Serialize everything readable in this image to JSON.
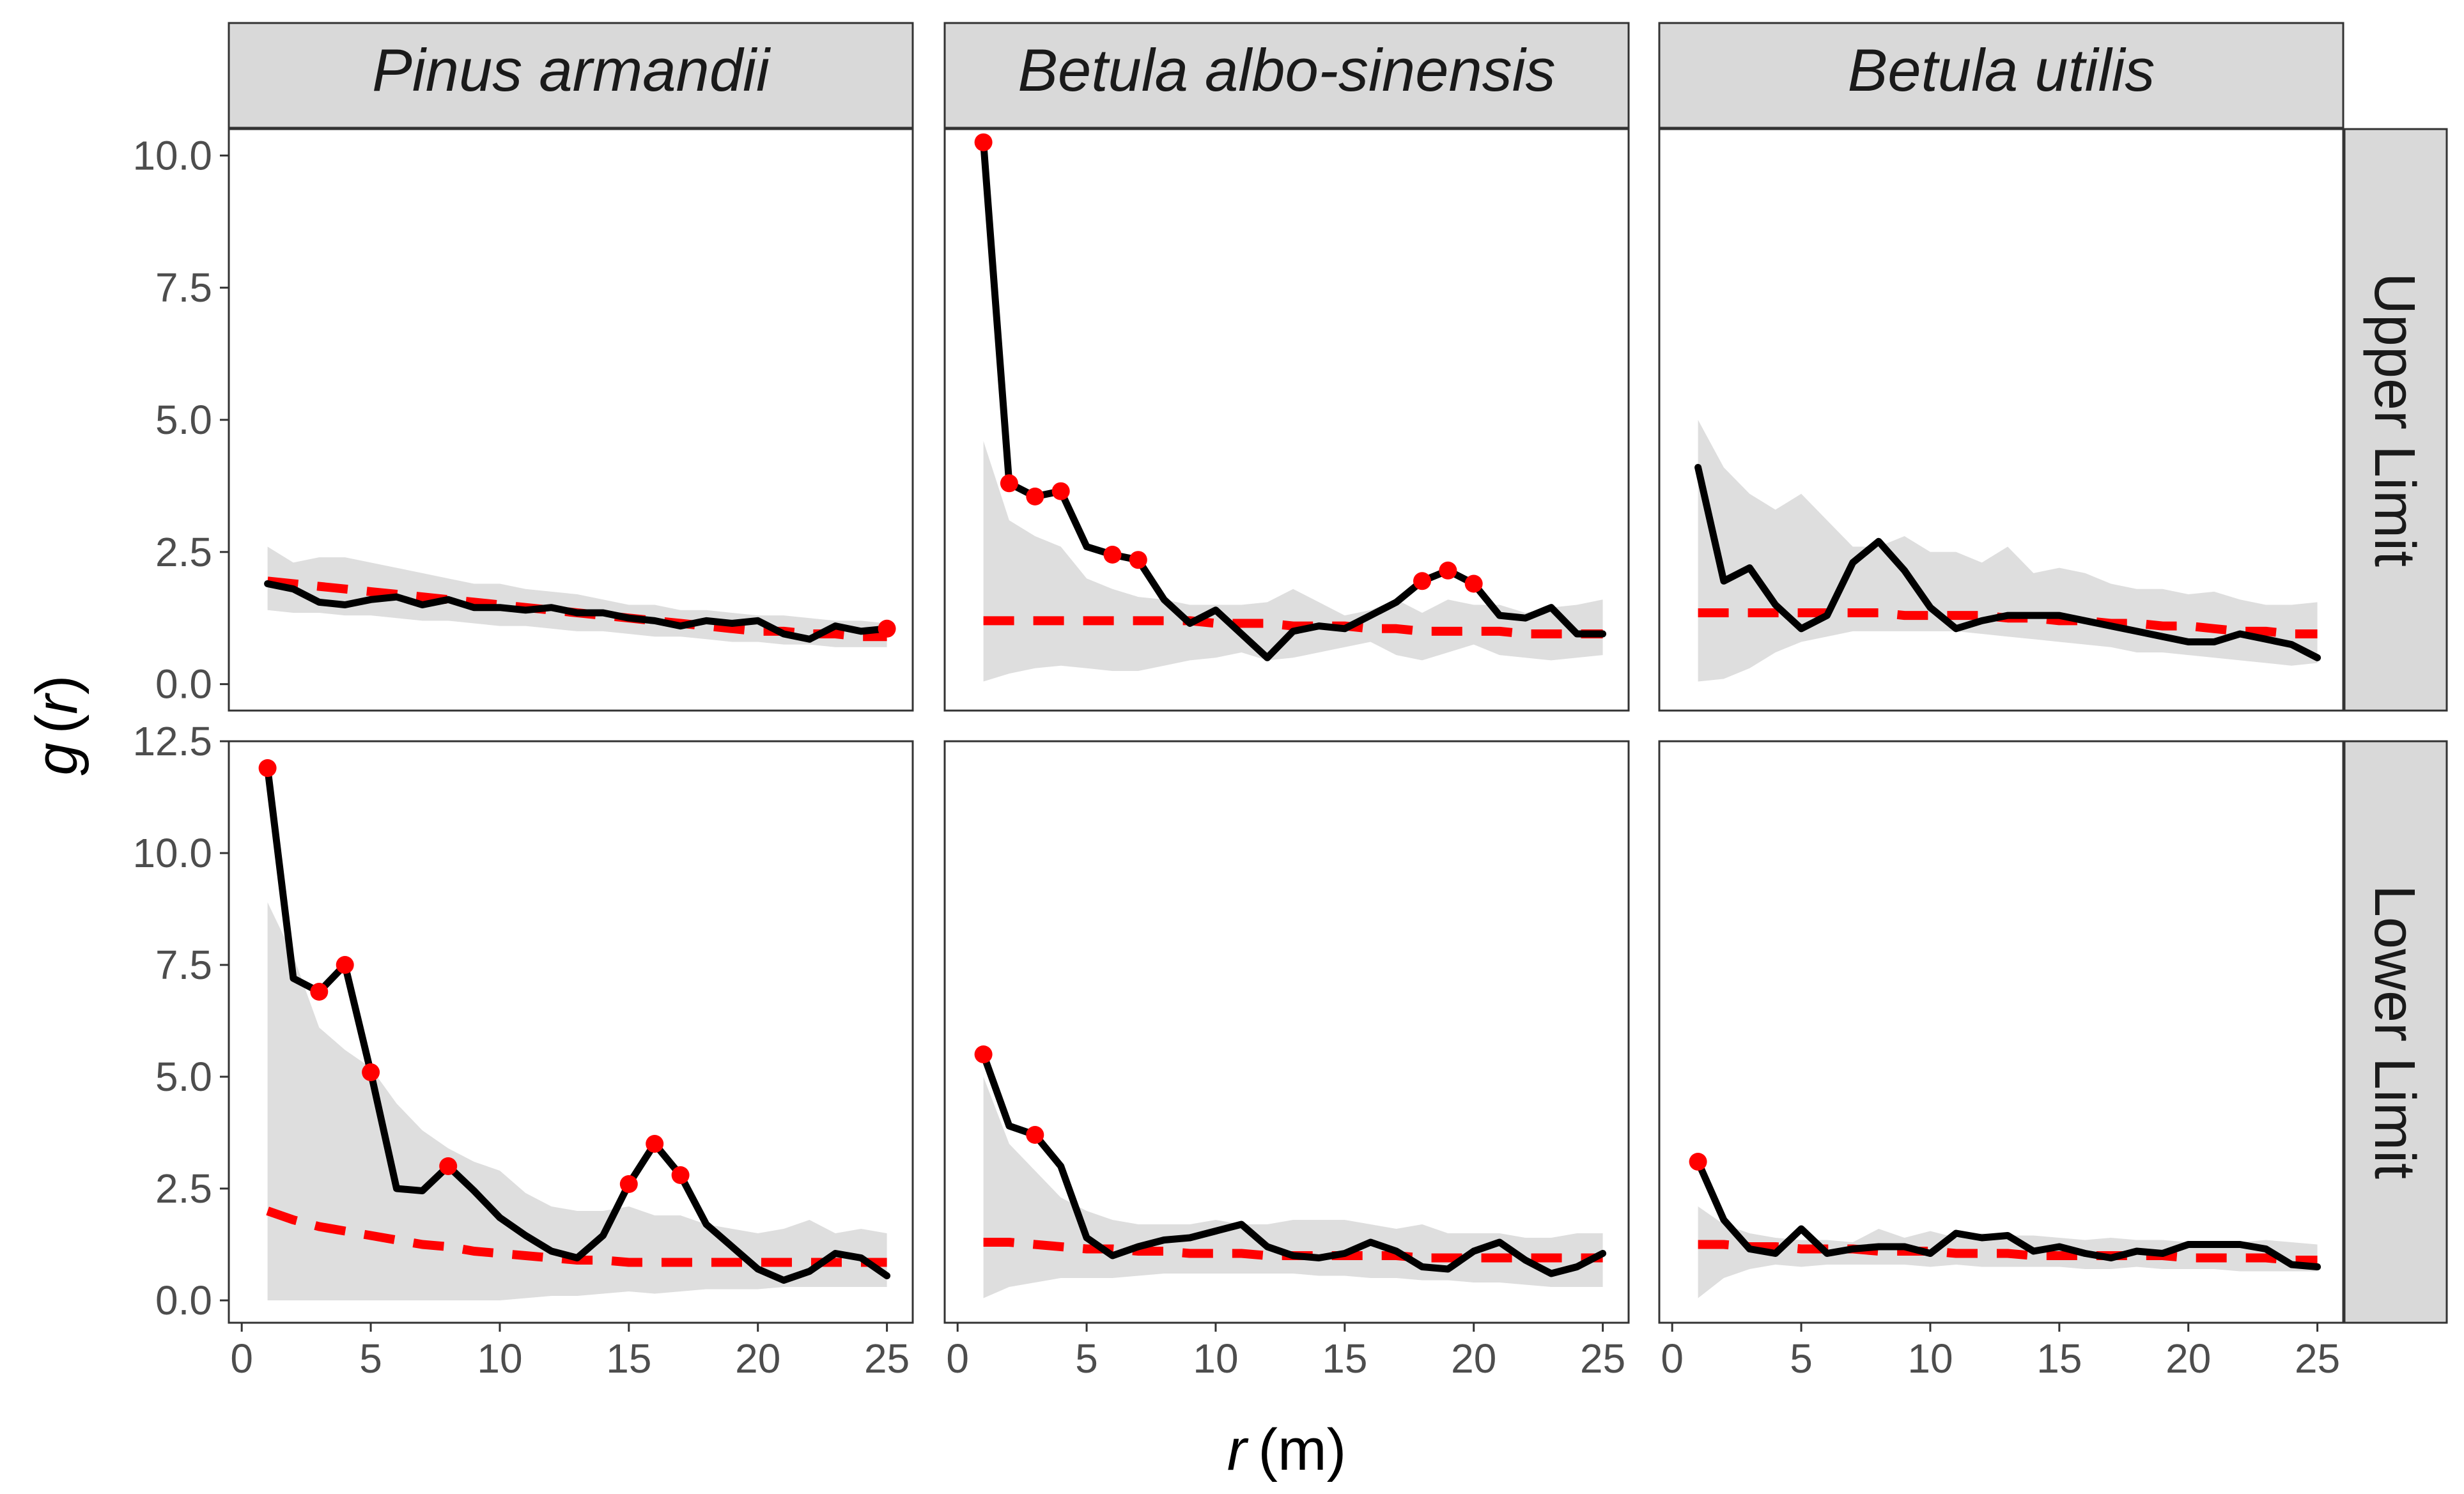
{
  "chart_data": {
    "type": "line",
    "xlabel_var": "r",
    "xlabel_unit": "(m)",
    "ylabel_fn": "g",
    "ylabel_var": "r",
    "x_ticks": [
      0,
      5,
      10,
      15,
      20,
      25
    ],
    "x_tick_labels": [
      "0",
      "5",
      "10",
      "15",
      "20",
      "25"
    ],
    "xlim": [
      -0.5,
      26
    ],
    "columns": [
      "Pinus armandii",
      "Betula albo-sinensis",
      "Betula utilis"
    ],
    "rows": [
      "Upper Limit",
      "Lower Limit"
    ],
    "row_scales": [
      {
        "ylim": [
          -0.5,
          10.5
        ],
        "ticks": [
          0,
          2.5,
          5,
          7.5,
          10
        ],
        "tick_labels": [
          "0.0",
          "2.5",
          "5.0",
          "7.5",
          "10.0"
        ]
      },
      {
        "ylim": [
          -0.5,
          12.5
        ],
        "ticks": [
          0,
          2.5,
          5,
          7.5,
          10,
          12.5
        ],
        "tick_labels": [
          "0.0",
          "2.5",
          "5.0",
          "7.5",
          "10.0",
          "12.5"
        ]
      }
    ],
    "panels": [
      {
        "row": 0,
        "col": 0,
        "observed": [
          1.9,
          1.8,
          1.55,
          1.5,
          1.6,
          1.65,
          1.5,
          1.6,
          1.45,
          1.45,
          1.4,
          1.45,
          1.35,
          1.35,
          1.25,
          1.2,
          1.1,
          1.2,
          1.15,
          1.2,
          0.95,
          0.85,
          1.1,
          1.0,
          1.05
        ],
        "expected": [
          1.95,
          1.9,
          1.85,
          1.8,
          1.75,
          1.7,
          1.65,
          1.6,
          1.55,
          1.5,
          1.45,
          1.4,
          1.35,
          1.3,
          1.25,
          1.2,
          1.15,
          1.1,
          1.05,
          1.0,
          1.0,
          0.95,
          0.95,
          0.9,
          0.9
        ],
        "env_upper": [
          2.6,
          2.3,
          2.4,
          2.4,
          2.3,
          2.2,
          2.1,
          2.0,
          1.9,
          1.9,
          1.8,
          1.75,
          1.7,
          1.6,
          1.5,
          1.5,
          1.4,
          1.4,
          1.35,
          1.3,
          1.3,
          1.25,
          1.2,
          1.2,
          1.15
        ],
        "env_lower": [
          1.4,
          1.35,
          1.35,
          1.3,
          1.3,
          1.25,
          1.2,
          1.2,
          1.15,
          1.1,
          1.1,
          1.05,
          1.0,
          1.0,
          0.95,
          0.9,
          0.9,
          0.85,
          0.8,
          0.8,
          0.75,
          0.75,
          0.7,
          0.7,
          0.7
        ],
        "significant": [
          25
        ]
      },
      {
        "row": 0,
        "col": 1,
        "observed": [
          10.25,
          3.8,
          3.55,
          3.65,
          2.6,
          2.45,
          2.35,
          1.6,
          1.15,
          1.4,
          0.95,
          0.5,
          1.0,
          1.1,
          1.05,
          1.3,
          1.55,
          1.95,
          2.15,
          1.9,
          1.3,
          1.25,
          1.45,
          0.95,
          0.95
        ],
        "expected": [
          1.2,
          1.2,
          1.2,
          1.2,
          1.2,
          1.2,
          1.2,
          1.2,
          1.2,
          1.15,
          1.15,
          1.15,
          1.1,
          1.1,
          1.1,
          1.05,
          1.05,
          1.0,
          1.0,
          1.0,
          1.0,
          0.95,
          0.95,
          0.95,
          0.95
        ],
        "env_upper": [
          4.6,
          3.1,
          2.8,
          2.6,
          2.0,
          1.8,
          1.65,
          1.6,
          1.5,
          1.5,
          1.5,
          1.55,
          1.8,
          1.55,
          1.3,
          1.4,
          1.6,
          1.35,
          1.6,
          1.5,
          1.5,
          1.35,
          1.45,
          1.5,
          1.6
        ],
        "env_lower": [
          0.05,
          0.2,
          0.3,
          0.35,
          0.3,
          0.25,
          0.25,
          0.35,
          0.45,
          0.5,
          0.6,
          0.45,
          0.5,
          0.6,
          0.7,
          0.8,
          0.55,
          0.45,
          0.6,
          0.75,
          0.55,
          0.5,
          0.45,
          0.5,
          0.55
        ],
        "significant": [
          1,
          2,
          3,
          4,
          6,
          7,
          18,
          19,
          20
        ]
      },
      {
        "row": 0,
        "col": 2,
        "observed": [
          4.1,
          1.95,
          2.2,
          1.5,
          1.05,
          1.3,
          2.3,
          2.7,
          2.15,
          1.45,
          1.05,
          1.2,
          1.3,
          1.3,
          1.3,
          1.2,
          1.1,
          1.0,
          0.9,
          0.8,
          0.8,
          0.95,
          0.85,
          0.75,
          0.5
        ],
        "expected": [
          1.35,
          1.35,
          1.35,
          1.35,
          1.35,
          1.35,
          1.35,
          1.35,
          1.3,
          1.3,
          1.3,
          1.3,
          1.25,
          1.25,
          1.2,
          1.2,
          1.15,
          1.15,
          1.1,
          1.1,
          1.05,
          1.0,
          1.0,
          0.95,
          0.95
        ],
        "env_upper": [
          5.0,
          4.1,
          3.6,
          3.3,
          3.6,
          3.1,
          2.6,
          2.6,
          2.8,
          2.5,
          2.5,
          2.3,
          2.6,
          2.1,
          2.2,
          2.1,
          1.9,
          1.8,
          1.8,
          1.7,
          1.75,
          1.6,
          1.5,
          1.5,
          1.55
        ],
        "env_lower": [
          0.05,
          0.1,
          0.3,
          0.6,
          0.8,
          0.9,
          1.0,
          1.0,
          1.0,
          1.0,
          1.0,
          0.95,
          0.9,
          0.85,
          0.8,
          0.75,
          0.7,
          0.6,
          0.6,
          0.55,
          0.5,
          0.45,
          0.4,
          0.35,
          0.4
        ],
        "significant": []
      },
      {
        "row": 1,
        "col": 0,
        "observed": [
          11.9,
          7.2,
          6.9,
          7.5,
          5.1,
          2.5,
          2.45,
          3.0,
          2.45,
          1.85,
          1.45,
          1.1,
          0.95,
          1.45,
          2.6,
          3.5,
          2.8,
          1.7,
          1.2,
          0.7,
          0.45,
          0.65,
          1.05,
          0.95,
          0.55
        ],
        "expected": [
          2.0,
          1.8,
          1.65,
          1.55,
          1.45,
          1.35,
          1.25,
          1.2,
          1.1,
          1.05,
          1.0,
          0.95,
          0.9,
          0.9,
          0.85,
          0.85,
          0.85,
          0.85,
          0.85,
          0.85,
          0.85,
          0.85,
          0.85,
          0.85,
          0.85
        ],
        "env_upper": [
          8.9,
          7.7,
          6.1,
          5.6,
          5.2,
          4.4,
          3.8,
          3.4,
          3.1,
          2.9,
          2.4,
          2.1,
          2.0,
          2.0,
          2.1,
          1.9,
          1.9,
          1.7,
          1.6,
          1.5,
          1.6,
          1.8,
          1.5,
          1.6,
          1.5
        ],
        "env_lower": [
          0.0,
          0.0,
          0.0,
          0.0,
          0.0,
          0.0,
          0.0,
          0.0,
          0.0,
          0.0,
          0.05,
          0.1,
          0.1,
          0.15,
          0.2,
          0.15,
          0.2,
          0.25,
          0.25,
          0.25,
          0.3,
          0.3,
          0.3,
          0.3,
          0.3
        ],
        "significant": [
          1,
          3,
          4,
          5,
          8,
          15,
          16,
          17
        ]
      },
      {
        "row": 1,
        "col": 1,
        "observed": [
          5.5,
          3.9,
          3.7,
          3.0,
          1.4,
          1.0,
          1.2,
          1.35,
          1.4,
          1.55,
          1.7,
          1.2,
          1.0,
          0.95,
          1.05,
          1.3,
          1.1,
          0.75,
          0.7,
          1.1,
          1.3,
          0.9,
          0.6,
          0.75,
          1.05
        ],
        "expected": [
          1.3,
          1.3,
          1.25,
          1.2,
          1.15,
          1.15,
          1.1,
          1.1,
          1.05,
          1.05,
          1.05,
          1.0,
          1.0,
          1.0,
          1.0,
          1.0,
          1.0,
          0.95,
          0.95,
          0.95,
          0.95,
          0.95,
          0.95,
          0.95,
          0.95
        ],
        "env_upper": [
          5.0,
          3.5,
          2.9,
          2.3,
          2.0,
          1.8,
          1.7,
          1.7,
          1.7,
          1.8,
          1.7,
          1.7,
          1.8,
          1.8,
          1.8,
          1.7,
          1.6,
          1.7,
          1.5,
          1.5,
          1.5,
          1.4,
          1.4,
          1.5,
          1.5
        ],
        "env_lower": [
          0.05,
          0.3,
          0.4,
          0.5,
          0.5,
          0.5,
          0.55,
          0.6,
          0.6,
          0.6,
          0.6,
          0.6,
          0.6,
          0.55,
          0.55,
          0.5,
          0.5,
          0.45,
          0.45,
          0.4,
          0.4,
          0.35,
          0.3,
          0.3,
          0.3
        ],
        "significant": [
          1,
          3
        ]
      },
      {
        "row": 1,
        "col": 2,
        "observed": [
          3.1,
          1.8,
          1.15,
          1.05,
          1.6,
          1.05,
          1.15,
          1.2,
          1.2,
          1.05,
          1.5,
          1.4,
          1.45,
          1.1,
          1.2,
          1.05,
          0.95,
          1.1,
          1.05,
          1.25,
          1.25,
          1.25,
          1.15,
          0.8,
          0.75
        ],
        "expected": [
          1.25,
          1.25,
          1.2,
          1.2,
          1.15,
          1.15,
          1.15,
          1.1,
          1.1,
          1.1,
          1.05,
          1.05,
          1.05,
          1.0,
          1.0,
          1.0,
          1.0,
          1.0,
          1.0,
          0.95,
          0.95,
          0.95,
          0.95,
          0.9,
          0.9
        ],
        "env_upper": [
          2.1,
          1.7,
          1.5,
          1.4,
          1.35,
          1.35,
          1.3,
          1.6,
          1.4,
          1.55,
          1.4,
          1.5,
          1.45,
          1.45,
          1.4,
          1.35,
          1.4,
          1.35,
          1.35,
          1.3,
          1.3,
          1.3,
          1.35,
          1.3,
          1.25
        ],
        "env_lower": [
          0.05,
          0.5,
          0.7,
          0.8,
          0.75,
          0.8,
          0.8,
          0.8,
          0.8,
          0.75,
          0.8,
          0.75,
          0.75,
          0.75,
          0.75,
          0.7,
          0.7,
          0.75,
          0.7,
          0.7,
          0.7,
          0.65,
          0.65,
          0.65,
          0.65
        ],
        "significant": [
          1
        ]
      }
    ]
  }
}
